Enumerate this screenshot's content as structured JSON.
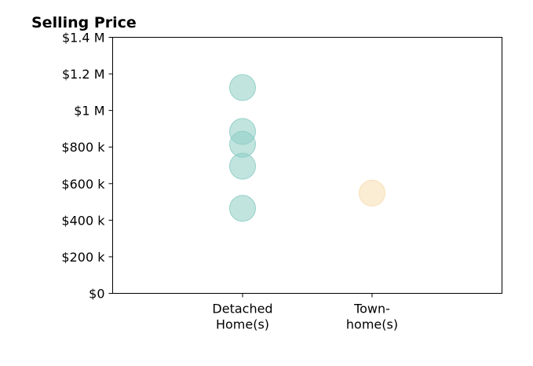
{
  "chart_data": {
    "type": "scatter",
    "title": "Selling Price",
    "xlabel": "",
    "ylabel": "",
    "categories": [
      {
        "lines": [
          "Detached",
          "Home(s)"
        ]
      },
      {
        "lines": [
          "Town-",
          "home(s)"
        ]
      }
    ],
    "ylim": [
      0,
      1400000
    ],
    "yticks": [
      {
        "value": 0,
        "label": "$0"
      },
      {
        "value": 200000,
        "label": "$200 k"
      },
      {
        "value": 400000,
        "label": "$400 k"
      },
      {
        "value": 600000,
        "label": "$600 k"
      },
      {
        "value": 800000,
        "label": "$800 k"
      },
      {
        "value": 1000000,
        "label": "$1 M"
      },
      {
        "value": 1200000,
        "label": "$1.2 M"
      },
      {
        "value": 1400000,
        "label": "$1.4 M"
      }
    ],
    "grid": false,
    "series": [
      {
        "category_index": 0,
        "color": "#8ecdc4",
        "values": [
          1125000,
          885000,
          815000,
          695000,
          465000
        ]
      },
      {
        "category_index": 1,
        "color": "#f6dfb0",
        "values": [
          548000
        ]
      }
    ]
  }
}
